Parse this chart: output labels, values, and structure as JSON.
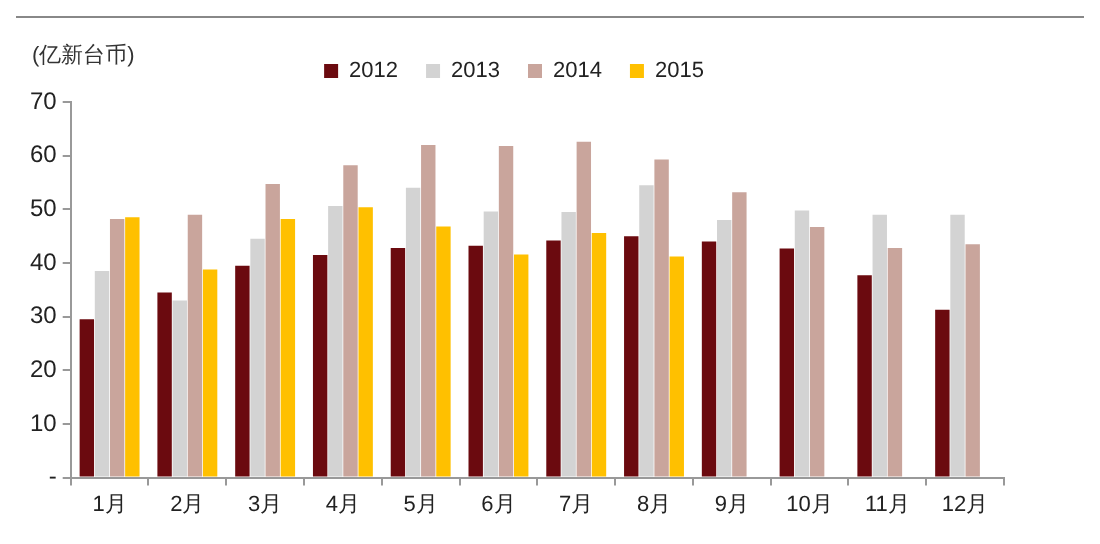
{
  "chart_data": {
    "type": "bar",
    "ylabel": "(亿新台币)",
    "categories": [
      "1月",
      "2月",
      "3月",
      "4月",
      "5月",
      "6月",
      "7月",
      "8月",
      "9月",
      "10月",
      "11月",
      "12月"
    ],
    "series": [
      {
        "name": "2012",
        "color": "#6b0a0f",
        "values": [
          29.5,
          34.5,
          39.5,
          41.5,
          42.8,
          43.2,
          44.2,
          45,
          44,
          42.7,
          37.7,
          31.3
        ]
      },
      {
        "name": "2013",
        "color": "#d3d3d3",
        "values": [
          38.5,
          33,
          44.5,
          50.6,
          54,
          49.6,
          49.5,
          54.5,
          48,
          49.8,
          49,
          49
        ]
      },
      {
        "name": "2014",
        "color": "#c9a59c",
        "values": [
          48.2,
          49,
          54.7,
          58.2,
          62,
          61.8,
          62.6,
          59.3,
          53.2,
          46.7,
          42.8,
          43.5
        ]
      },
      {
        "name": "2015",
        "color": "#ffc000",
        "values": [
          48.5,
          38.8,
          48.2,
          50.4,
          46.8,
          41.6,
          45.6,
          41.2,
          null,
          null,
          null,
          null
        ]
      }
    ],
    "ylim": [
      0,
      70
    ],
    "yticks": [
      {
        "value": 0,
        "label": "-"
      },
      10,
      20,
      30,
      40,
      50,
      60,
      70
    ],
    "grid": false,
    "legend": "top"
  }
}
